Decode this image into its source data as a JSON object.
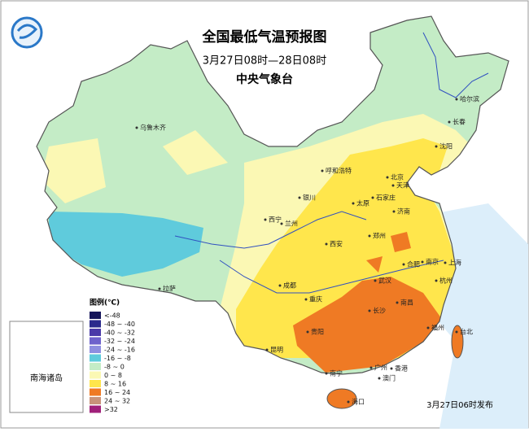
{
  "header": {
    "title": "全国最低气温预报图",
    "subtitle": "3月27日08时—28日08时",
    "agency": "中央气象台"
  },
  "legend": {
    "title": "图例(℃)",
    "items": [
      {
        "label": "<-48",
        "color": "#14145a"
      },
      {
        "label": "-48 ~ -40",
        "color": "#2b2b8c"
      },
      {
        "label": "-40 ~ -32",
        "color": "#4a3aa8"
      },
      {
        "label": "-32 ~ -24",
        "color": "#6e62cc"
      },
      {
        "label": "-24 ~ -16",
        "color": "#8e8ee0"
      },
      {
        "label": "-16 ~ -8",
        "color": "#5fcbdc"
      },
      {
        "label": "-8 ~ 0",
        "color": "#c4ecc6"
      },
      {
        "label": "0 ~ 8",
        "color": "#fbf8b4"
      },
      {
        "label": "8 ~ 16",
        "color": "#ffe64c"
      },
      {
        "label": "16 ~ 24",
        "color": "#ef7a24"
      },
      {
        "label": "24 ~ 32",
        "color": "#c8927a"
      },
      {
        "label": ">32",
        "color": "#a0207a"
      }
    ]
  },
  "cities": [
    "乌鲁木齐",
    "哈尔滨",
    "长春",
    "沈阳",
    "呼和浩特",
    "北京",
    "天津",
    "银川",
    "太原",
    "石家庄",
    "济南",
    "西宁",
    "兰州",
    "郑州",
    "西安",
    "合肥",
    "南京",
    "上海",
    "拉萨",
    "成都",
    "武汉",
    "杭州",
    "重庆",
    "长沙",
    "南昌",
    "贵阳",
    "福州",
    "台北",
    "昆明",
    "南宁",
    "广州",
    "香港",
    "澳门",
    "海口"
  ],
  "inset": {
    "label": "南海诸岛"
  },
  "footer": "3月27日06时发布"
}
